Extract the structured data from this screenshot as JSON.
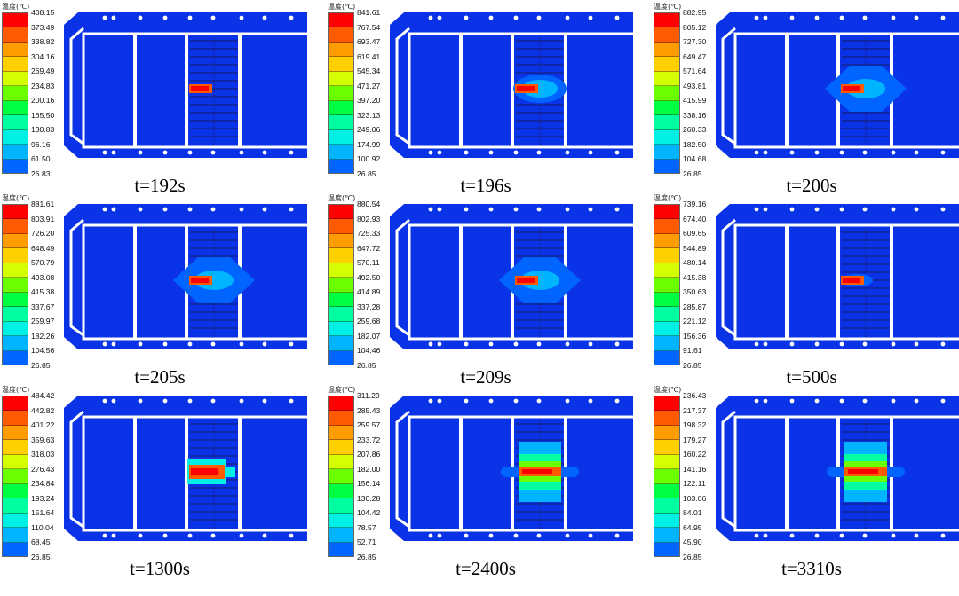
{
  "legend_title": "温度(℃)",
  "legend_colors": [
    "#ff0000",
    "#ff5a00",
    "#ff9c00",
    "#ffd000",
    "#d4ff00",
    "#6bff00",
    "#00ff40",
    "#00ffa0",
    "#00f0e6",
    "#00b4ff",
    "#0064ff",
    "#0018ff"
  ],
  "body_color": "#0a32e6",
  "slot_color": "#ffffff",
  "panels": [
    {
      "time": "t=192s",
      "levels": [
        "408.15",
        "373.49",
        "338.82",
        "304.16",
        "269.49",
        "234.83",
        "200.16",
        "165.50",
        "130.83",
        "96.16",
        "61.50",
        "26.83"
      ],
      "hotspot": "small"
    },
    {
      "time": "t=196s",
      "levels": [
        "841.61",
        "767.54",
        "693.47",
        "619.41",
        "545.34",
        "471.27",
        "397.20",
        "323.13",
        "249.06",
        "174.99",
        "100.92",
        "26.85"
      ],
      "hotspot": "spread-small"
    },
    {
      "time": "t=200s",
      "levels": [
        "882.95",
        "805.12",
        "727.30",
        "649.47",
        "571.64",
        "493.81",
        "415.99",
        "338.16",
        "260.33",
        "182.50",
        "104.68",
        "26.85"
      ],
      "hotspot": "spread-wide"
    },
    {
      "time": "t=205s",
      "levels": [
        "881.61",
        "803.91",
        "726.20",
        "648.49",
        "570.79",
        "493.08",
        "415.38",
        "337.67",
        "259.97",
        "182.26",
        "104.56",
        "26.85"
      ],
      "hotspot": "spread-wide"
    },
    {
      "time": "t=209s",
      "levels": [
        "880.54",
        "802.93",
        "725.33",
        "647.72",
        "570.11",
        "492.50",
        "414.89",
        "337.28",
        "259.68",
        "182.07",
        "104.46",
        "26.85"
      ],
      "hotspot": "spread-wide"
    },
    {
      "time": "t=500s",
      "levels": [
        "739.16",
        "674.40",
        "609.65",
        "544.89",
        "480.14",
        "415.38",
        "350.63",
        "285.87",
        "221.12",
        "156.36",
        "91.61",
        "26.85"
      ],
      "hotspot": "cell"
    },
    {
      "time": "t=1300s",
      "levels": [
        "484.42",
        "442.82",
        "401.22",
        "359.63",
        "318.03",
        "276.43",
        "234.84",
        "193.24",
        "151.64",
        "110.04",
        "68.45",
        "26.85"
      ],
      "hotspot": "cell-tall"
    },
    {
      "time": "t=2400s",
      "levels": [
        "311.29",
        "285.43",
        "259.57",
        "233.72",
        "207.86",
        "182.00",
        "156.14",
        "130.28",
        "104.42",
        "78.57",
        "52.71",
        "26.85"
      ],
      "hotspot": "multi"
    },
    {
      "time": "t=3310s",
      "levels": [
        "236.43",
        "217.37",
        "198.32",
        "179.27",
        "160.22",
        "141.16",
        "122.11",
        "103.06",
        "84.01",
        "64.95",
        "45.90",
        "26.85"
      ],
      "hotspot": "multi-wide"
    }
  ]
}
